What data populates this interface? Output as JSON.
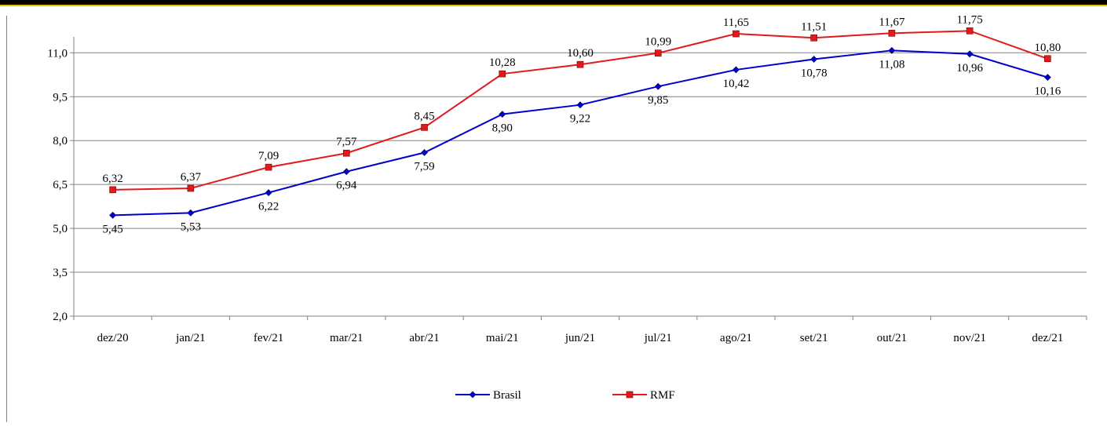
{
  "chart_data": {
    "type": "line",
    "categories": [
      "dez/20",
      "jan/21",
      "fev/21",
      "mar/21",
      "abr/21",
      "mai/21",
      "jun/21",
      "jul/21",
      "ago/21",
      "set/21",
      "out/21",
      "nov/21",
      "dez/21"
    ],
    "series": [
      {
        "name": "Brasil",
        "color": "#0000CC",
        "marker": "diamond",
        "values": [
          5.45,
          5.53,
          6.22,
          6.94,
          7.59,
          8.9,
          9.22,
          9.85,
          10.42,
          10.78,
          11.08,
          10.96,
          10.16
        ],
        "labels": [
          "5,45",
          "5,53",
          "6,22",
          "6,94",
          "7,59",
          "8,90",
          "9,22",
          "9,85",
          "10,42",
          "10,78",
          "11,08",
          "10,96",
          "10,16"
        ]
      },
      {
        "name": "RMF",
        "color": "#E31A1C",
        "marker": "square",
        "values": [
          6.32,
          6.37,
          7.09,
          7.57,
          8.45,
          10.28,
          10.6,
          10.99,
          11.65,
          11.51,
          11.67,
          11.75,
          10.8
        ],
        "labels": [
          "6,32",
          "6,37",
          "7,09",
          "7,57",
          "8,45",
          "10,28",
          "10,60",
          "10,99",
          "11,65",
          "11,51",
          "11,67",
          "11,75",
          "10,80"
        ]
      }
    ],
    "y_ticks": [
      "2,0",
      "3,5",
      "5,0",
      "6,5",
      "8,0",
      "9,5",
      "11,0"
    ],
    "ylim": [
      2.0,
      12.0
    ],
    "y_gridlines": [
      2.0,
      3.5,
      5.0,
      6.5,
      8.0,
      9.5,
      11.0
    ],
    "grid": true,
    "legend_position": "bottom-center",
    "title": "",
    "xlabel": "",
    "ylabel": ""
  }
}
